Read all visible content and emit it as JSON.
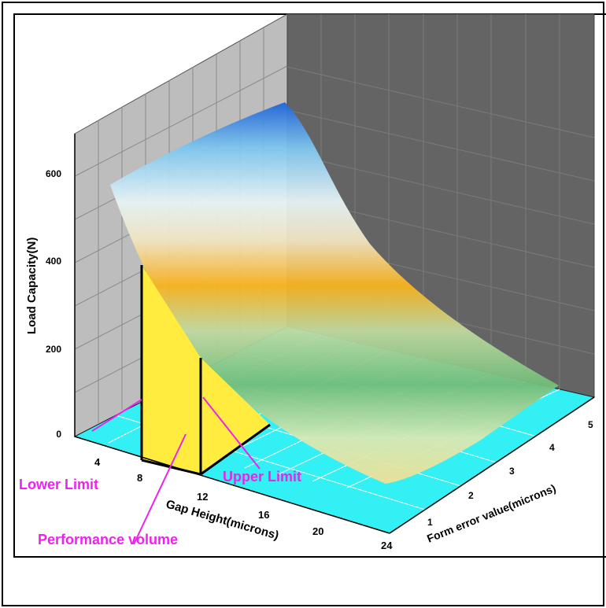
{
  "chart_data": {
    "type": "surface3d",
    "title": "",
    "xlabel": "Gap Height(microns)",
    "ylabel": "Form error value(microns)",
    "zlabel": "Load Capacity(N)",
    "x_ticks": [
      "4",
      "8",
      "12",
      "16",
      "20",
      "24"
    ],
    "y_ticks": [
      "1",
      "2",
      "3",
      "4",
      "5"
    ],
    "z_ticks": [
      "0",
      "200",
      "400",
      "600"
    ],
    "xlim": [
      2,
      24
    ],
    "ylim": [
      0,
      5.5
    ],
    "zlim": [
      0,
      700
    ],
    "surface": {
      "x": [
        3,
        4,
        5,
        6,
        7,
        8,
        9,
        10,
        11,
        12,
        13,
        14,
        15,
        16,
        18,
        20,
        22,
        24
      ],
      "load_at_min_form_error": [
        560,
        470,
        400,
        330,
        270,
        215,
        165,
        125,
        95,
        70,
        55,
        45,
        38,
        32,
        27,
        24,
        22,
        20
      ],
      "load_at_max_form_error": [
        600,
        585,
        540,
        430,
        300,
        190,
        110,
        60,
        35,
        20,
        15,
        12,
        10,
        9,
        8,
        7,
        6,
        5
      ]
    },
    "annotations": [
      "Lower Limit",
      "Upper Limit",
      "Performance volume"
    ],
    "limits": {
      "lower": 8,
      "upper": 12
    },
    "colors": {
      "floor": "#33f0f5",
      "left_wall": "#bdbdbd",
      "back_wall": "#646464",
      "performance_volume": "#ffec3f",
      "annotation": "#ee22ee",
      "surface_colormap": [
        "#1f63d8",
        "#7ec6ee",
        "#e6f3f5",
        "#f0e5c4",
        "#f7b21e",
        "#bfd9a0",
        "#72bd7a",
        "#d6e8b4",
        "#efe095"
      ]
    },
    "grid": true
  }
}
